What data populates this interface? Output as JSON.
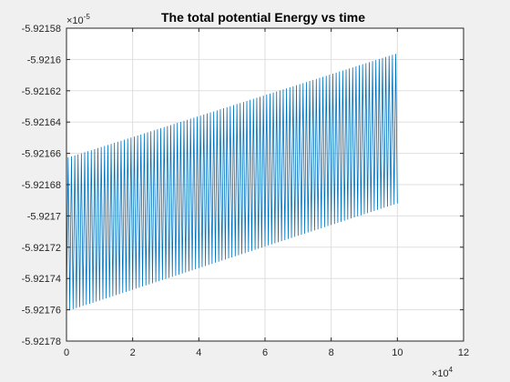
{
  "chart_data": {
    "type": "line",
    "title": "The total potential Energy vs time",
    "xlabel": "",
    "ylabel": "",
    "x_exponent_label": {
      "base": "×10",
      "exp": "4"
    },
    "y_exponent_label": {
      "base": "×10",
      "exp": "-5"
    },
    "xlim": [
      0,
      12
    ],
    "ylim": [
      -5.92178,
      -5.92158
    ],
    "x_ticks": [
      "0",
      "2",
      "4",
      "6",
      "8",
      "10",
      "12"
    ],
    "y_ticks": [
      "-5.92178",
      "-5.92176",
      "-5.92174",
      "-5.92172",
      "-5.9217",
      "-5.92168",
      "-5.92166",
      "-5.92164",
      "-5.92162",
      "-5.9216",
      "-5.92158"
    ],
    "grid": true,
    "series": [
      {
        "color": "#0072bd",
        "oscillation": {
          "x_start": 0,
          "x_end": 10,
          "cycles": 100,
          "upper_start": -5.921663,
          "upper_end": -5.921596,
          "lower_start": -5.921761,
          "lower_end": -5.921692
        }
      }
    ]
  }
}
